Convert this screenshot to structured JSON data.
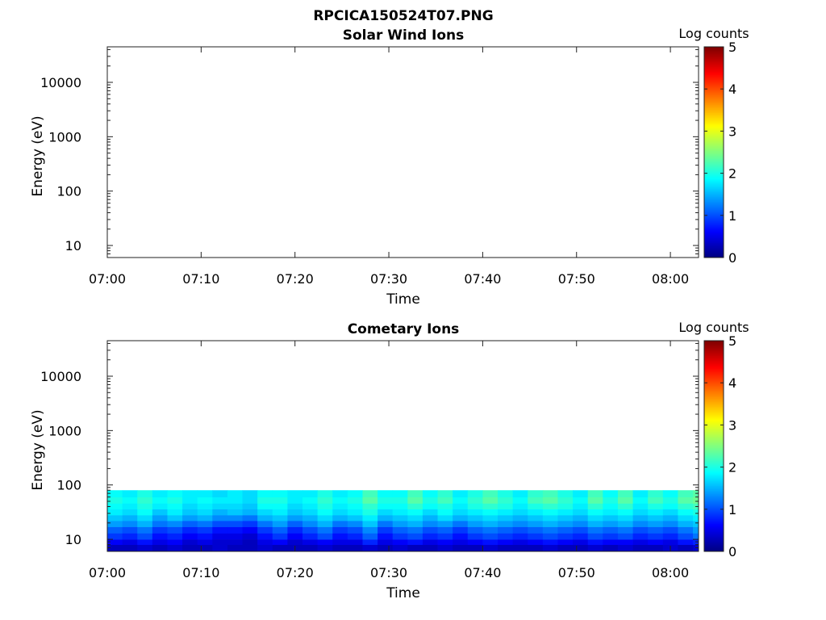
{
  "figure_title": "RPCICA150524T07.PNG",
  "chart_data": [
    {
      "type": "heatmap",
      "title": "Solar Wind Ions",
      "xlabel": "Time",
      "ylabel": "Energy (eV)",
      "x_ticks": [
        "07:00",
        "07:10",
        "07:20",
        "07:30",
        "07:40",
        "07:50",
        "08:00"
      ],
      "x_range_minutes": [
        0,
        63
      ],
      "y_scale": "log",
      "y_range": [
        6,
        45000
      ],
      "y_ticks": [
        10,
        100,
        1000,
        10000
      ],
      "y_tick_labels": [
        "10",
        "100",
        "1000",
        "10000"
      ],
      "colorbar": {
        "label": "Log counts",
        "range": [
          0,
          5
        ],
        "ticks": [
          "0",
          "1",
          "2",
          "3",
          "4",
          "5"
        ],
        "colormap": "jet"
      },
      "data_present": false
    },
    {
      "type": "heatmap",
      "title": "Cometary Ions",
      "xlabel": "Time",
      "ylabel": "Energy (eV)",
      "x_ticks": [
        "07:00",
        "07:10",
        "07:20",
        "07:30",
        "07:40",
        "07:50",
        "08:00"
      ],
      "x_range_minutes": [
        0,
        63
      ],
      "y_scale": "log",
      "y_range": [
        6,
        45000
      ],
      "y_ticks": [
        10,
        100,
        1000,
        10000
      ],
      "y_tick_labels": [
        "10",
        "100",
        "1000",
        "10000"
      ],
      "colorbar": {
        "label": "Log counts",
        "range": [
          0,
          5
        ],
        "ticks": [
          "0",
          "1",
          "2",
          "3",
          "4",
          "5"
        ],
        "colormap": "jet"
      },
      "energy_bands_eV": [
        6,
        8,
        10,
        13,
        17,
        22,
        28,
        36,
        46,
        60,
        80
      ],
      "time_bins_minutes": [
        0,
        1.6,
        3.2,
        4.8,
        6.4,
        8,
        9.6,
        11.2,
        12.8,
        14.4,
        16,
        17.6,
        19.2,
        20.8,
        22.4,
        24,
        25.6,
        27.2,
        28.8,
        30.4,
        32,
        33.6,
        35.2,
        36.8,
        38.4,
        40,
        41.6,
        43.2,
        44.8,
        46.4,
        48,
        49.6,
        51.2,
        52.8,
        54.4,
        56,
        57.6,
        59.2,
        60.8,
        62.4
      ],
      "log_counts_by_band": [
        [
          0.3,
          0.3,
          0.4,
          0.3,
          0.4,
          0.3,
          0.3,
          0.4,
          0.3,
          0.3,
          0.4,
          0.3,
          0.3,
          0.3,
          0.4,
          0.3,
          0.3,
          0.4,
          0.3,
          0.4,
          0.3,
          0.3,
          0.4,
          0.3,
          0.3,
          0.4,
          0.3,
          0.3,
          0.3,
          0.4,
          0.3,
          0.3,
          0.4,
          0.3,
          0.4,
          0.3,
          0.3,
          0.4,
          0.3,
          0.4
        ],
        [
          0.6,
          0.5,
          0.7,
          0.5,
          0.6,
          0.4,
          0.5,
          0.4,
          0.4,
          0.3,
          0.5,
          0.6,
          0.4,
          0.5,
          0.6,
          0.5,
          0.5,
          0.8,
          0.5,
          0.6,
          0.7,
          0.5,
          0.6,
          0.5,
          0.6,
          0.7,
          0.6,
          0.5,
          0.6,
          0.7,
          0.6,
          0.5,
          0.7,
          0.6,
          0.6,
          0.5,
          0.6,
          0.5,
          0.7,
          0.8
        ],
        [
          0.9,
          0.8,
          1.0,
          0.7,
          0.8,
          0.6,
          0.7,
          0.5,
          0.5,
          0.4,
          0.7,
          0.9,
          0.6,
          0.8,
          1.0,
          0.7,
          0.8,
          1.1,
          0.7,
          0.9,
          1.0,
          0.8,
          0.9,
          0.7,
          0.9,
          1.0,
          0.9,
          0.8,
          0.9,
          1.0,
          0.9,
          0.8,
          1.0,
          0.9,
          1.0,
          0.8,
          0.9,
          0.8,
          1.0,
          1.2
        ],
        [
          1.1,
          1.0,
          1.2,
          0.9,
          1.0,
          0.8,
          0.9,
          0.7,
          0.7,
          0.6,
          0.9,
          1.1,
          0.8,
          1.0,
          1.2,
          0.9,
          1.0,
          1.3,
          0.9,
          1.1,
          1.2,
          1.0,
          1.1,
          0.9,
          1.1,
          1.2,
          1.1,
          1.0,
          1.1,
          1.2,
          1.1,
          1.0,
          1.2,
          1.1,
          1.2,
          1.0,
          1.1,
          1.0,
          1.2,
          1.4
        ],
        [
          1.4,
          1.3,
          1.5,
          1.2,
          1.3,
          1.1,
          1.2,
          1.0,
          1.0,
          0.9,
          1.2,
          1.4,
          1.1,
          1.3,
          1.5,
          1.2,
          1.3,
          1.6,
          1.2,
          1.4,
          1.5,
          1.3,
          1.4,
          1.2,
          1.4,
          1.5,
          1.4,
          1.3,
          1.4,
          1.5,
          1.4,
          1.3,
          1.5,
          1.4,
          1.5,
          1.3,
          1.4,
          1.3,
          1.5,
          1.6
        ],
        [
          1.6,
          1.5,
          1.7,
          1.4,
          1.6,
          1.4,
          1.5,
          1.3,
          1.3,
          1.2,
          1.5,
          1.6,
          1.4,
          1.5,
          1.7,
          1.5,
          1.6,
          1.8,
          1.5,
          1.6,
          1.7,
          1.5,
          1.7,
          1.5,
          1.6,
          1.7,
          1.6,
          1.5,
          1.6,
          1.7,
          1.6,
          1.5,
          1.7,
          1.6,
          1.7,
          1.5,
          1.6,
          1.5,
          1.7,
          1.8
        ],
        [
          1.8,
          1.7,
          1.9,
          1.6,
          1.8,
          1.6,
          1.7,
          1.5,
          1.6,
          1.5,
          1.7,
          1.8,
          1.6,
          1.7,
          1.9,
          1.7,
          1.8,
          2.0,
          1.7,
          1.8,
          1.9,
          1.7,
          1.9,
          1.7,
          1.8,
          1.9,
          1.8,
          1.7,
          1.8,
          1.9,
          1.8,
          1.7,
          1.9,
          1.8,
          1.9,
          1.7,
          1.8,
          1.7,
          1.9,
          2.0
        ],
        [
          1.9,
          1.8,
          2.0,
          1.8,
          1.9,
          1.7,
          1.8,
          1.7,
          1.7,
          1.6,
          1.9,
          1.9,
          1.7,
          1.8,
          2.0,
          1.8,
          1.9,
          2.1,
          1.9,
          1.9,
          2.1,
          1.9,
          2.0,
          1.8,
          2.0,
          2.1,
          2.0,
          1.8,
          2.0,
          2.1,
          2.0,
          1.8,
          2.1,
          1.9,
          2.1,
          1.8,
          2.0,
          1.9,
          2.1,
          2.2
        ],
        [
          2.0,
          1.9,
          2.1,
          1.9,
          2.0,
          1.8,
          1.9,
          1.8,
          1.8,
          1.7,
          2.0,
          2.0,
          1.8,
          1.9,
          2.1,
          1.9,
          2.0,
          2.3,
          2.0,
          2.0,
          2.3,
          2.0,
          2.2,
          1.9,
          2.1,
          2.3,
          2.1,
          1.9,
          2.2,
          2.3,
          2.1,
          1.9,
          2.3,
          2.0,
          2.3,
          1.9,
          2.2,
          2.0,
          2.3,
          2.4
        ],
        [
          1.9,
          1.8,
          2.0,
          1.8,
          1.9,
          1.8,
          1.8,
          1.7,
          1.8,
          1.7,
          1.9,
          1.9,
          1.8,
          1.8,
          2.0,
          1.8,
          1.9,
          2.2,
          1.9,
          1.9,
          2.2,
          1.9,
          2.1,
          1.8,
          2.0,
          2.2,
          2.0,
          1.8,
          2.1,
          2.2,
          2.0,
          1.8,
          2.2,
          1.9,
          2.2,
          1.8,
          2.1,
          1.9,
          2.2,
          2.3
        ]
      ]
    }
  ]
}
